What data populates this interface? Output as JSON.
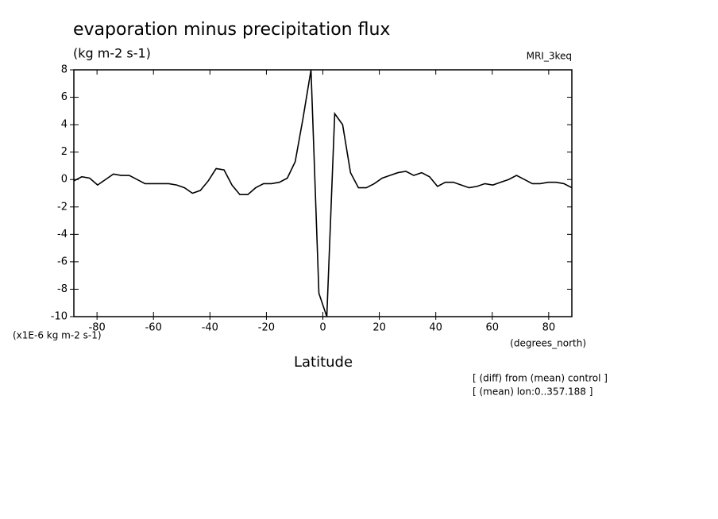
{
  "chart_data": {
    "type": "line",
    "title": "evaporation minus precipitation flux",
    "subtitle": "(kg m-2 s-1)",
    "dataset_label": "MRI_3keq",
    "y_scale_label": "(x1E-6 kg m-2 s-1)",
    "x_units_label": "(degrees_north)",
    "x_label": "Latitude",
    "notes": [
      "[ (diff) from (mean) control ]",
      "[ (mean) lon:0..357.188 ]"
    ],
    "x": [
      -88.2,
      -85.4,
      -82.6,
      -79.8,
      -77.0,
      -74.2,
      -71.4,
      -68.6,
      -65.8,
      -63.0,
      -60.2,
      -57.4,
      -54.6,
      -51.8,
      -49.0,
      -46.2,
      -43.4,
      -40.6,
      -37.8,
      -35.0,
      -32.2,
      -29.4,
      -26.6,
      -23.8,
      -21.0,
      -18.2,
      -15.4,
      -12.6,
      -9.8,
      -7.0,
      -4.2,
      -1.4,
      1.4,
      4.2,
      7.0,
      9.8,
      12.6,
      15.4,
      18.2,
      21.0,
      23.8,
      26.6,
      29.4,
      32.2,
      35.0,
      37.8,
      40.6,
      43.4,
      46.2,
      49.0,
      51.8,
      54.6,
      57.4,
      60.2,
      63.0,
      65.8,
      68.6,
      71.4,
      74.2,
      77.0,
      79.8,
      82.6,
      85.4,
      88.2
    ],
    "series": [
      {
        "color": "#000000",
        "values": [
          -0.1,
          0.2,
          0.1,
          -0.4,
          0.0,
          0.4,
          0.3,
          0.3,
          0.0,
          -0.3,
          -0.3,
          -0.3,
          -0.3,
          -0.4,
          -0.6,
          -1.0,
          -0.8,
          -0.1,
          0.8,
          0.7,
          -0.4,
          -1.1,
          -1.1,
          -0.6,
          -0.3,
          -0.3,
          -0.2,
          0.1,
          1.3,
          4.5,
          8.0,
          -8.3,
          -10.0,
          4.8,
          4.0,
          0.5,
          -0.6,
          -0.6,
          -0.3,
          0.1,
          0.3,
          0.5,
          0.6,
          0.3,
          0.5,
          0.2,
          -0.5,
          -0.2,
          -0.2,
          -0.4,
          -0.6,
          -0.5,
          -0.3,
          -0.4,
          -0.2,
          0.0,
          0.3,
          0.0,
          -0.3,
          -0.3,
          -0.2,
          -0.2,
          -0.3,
          -0.6
        ]
      }
    ],
    "xlim": [
      -88.2,
      88.2
    ],
    "ylim": [
      -10,
      8
    ],
    "xticks": [
      -80,
      -60,
      -40,
      -20,
      0,
      20,
      40,
      60,
      80
    ],
    "yticks": [
      -10,
      -8,
      -6,
      -4,
      -2,
      0,
      2,
      4,
      6,
      8
    ],
    "grid": false
  }
}
